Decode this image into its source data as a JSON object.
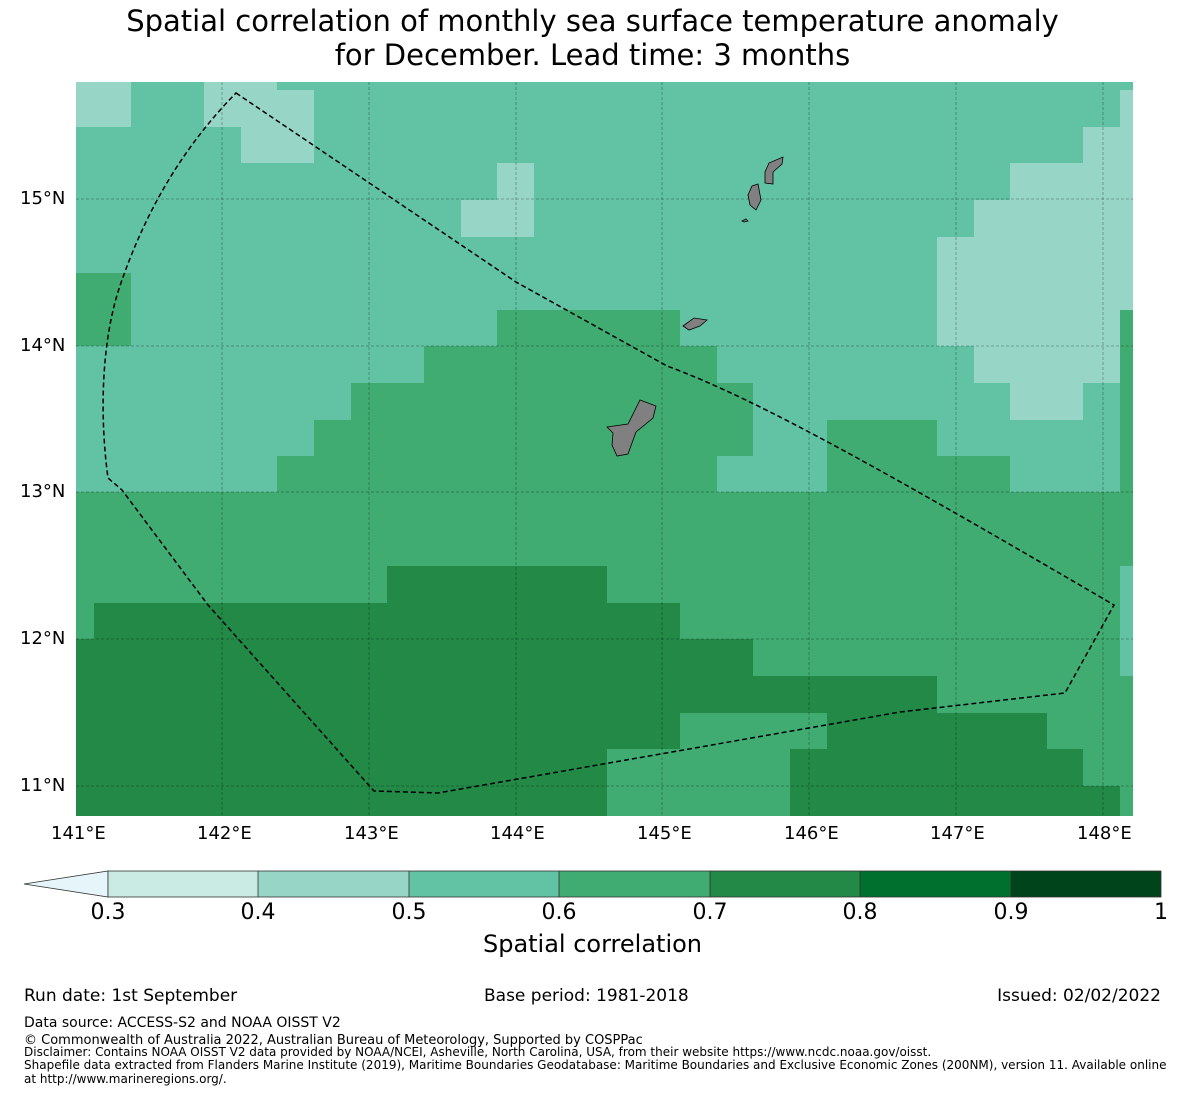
{
  "title_line1": "Spatial correlation of monthly sea surface temperature anomaly",
  "title_line2": "for December. Lead time: 3 months",
  "lat_labels": [
    "15°N",
    "14°N",
    "13°N",
    "12°N",
    "11°N"
  ],
  "lon_labels": [
    "141°E",
    "142°E",
    "143°E",
    "144°E",
    "145°E",
    "146°E",
    "147°E",
    "148°E"
  ],
  "colorbar": {
    "ticks": [
      "0.3",
      "0.4",
      "0.5",
      "0.6",
      "0.7",
      "0.8",
      "0.9",
      "1"
    ],
    "colors": [
      "#c9ebe3",
      "#97d6c6",
      "#62c2a4",
      "#41ac72",
      "#228946",
      "#00702e",
      "#00441b"
    ],
    "extend_color": "#e5f5f9",
    "label": "Spatial correlation"
  },
  "colors": {
    "land": "#808080",
    "eez_line": "#000000"
  },
  "footer": {
    "run_date": "Run date: 1st September",
    "base_period": "Base period: 1981-2018",
    "issued": "Issued: 02/02/2022",
    "data_source": "Data source: ACCESS-S2 and NOAA OISST V2",
    "copyright": "© Commonwealth of Australia 2022, Australian Bureau of Meteorology, Supported by COSPPac",
    "disclaimer": "Disclaimer: Contains NOAA OISST V2 data provided by NOAA/NCEI, Asheville, North Carolina, USA, from their website https://www.ncdc.noaa.gov/oisst.",
    "shapefile1": "Shapefile data extracted from Flanders Marine Institute (2019), Maritime Boundaries Geodatabase: Maritime Boundaries and Exclusive Economic Zones (200NM), version 11. Available online",
    "shapefile2": "at http://www.marineregions.org/."
  }
}
